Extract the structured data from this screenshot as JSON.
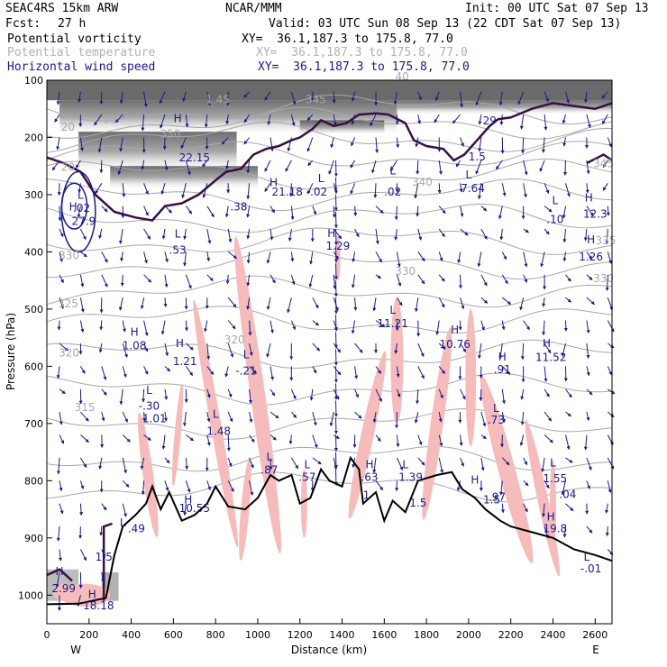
{
  "header": {
    "model": "SEAC4RS 15km ARW",
    "center": "NCAR/MMM",
    "init": "Init: 00 UTC Sat 07 Sep 13",
    "fcst_label": "Fcst:",
    "fcst_value": "27 h",
    "valid": "Valid: 03 UTC Sun 08 Sep 13 (22 CDT Sat 07 Sep 13)",
    "fields": [
      {
        "name": "Potential vorticity",
        "xy": "XY=  36.1,187.3 to 175.8, 77.0",
        "color": "#000000"
      },
      {
        "name": "Potential temperature",
        "xy": "XY=  36.1,187.3 to 175.8, 77.0",
        "color": "#b0b0b0"
      },
      {
        "name": "Horizontal wind speed",
        "xy": "XY=  36.1,187.3 to 175.8, 77.0",
        "color": "#1a1a8c"
      }
    ]
  },
  "chart_data": {
    "type": "cross-section",
    "ylabel": "Pressure (hPa)",
    "xlabel": "Distance (km)",
    "xlim": [
      0,
      2680
    ],
    "ylim": [
      1050,
      100
    ],
    "x_ticks": [
      0,
      200,
      400,
      600,
      800,
      1000,
      1200,
      1400,
      1600,
      1800,
      2000,
      2200,
      2400,
      2600
    ],
    "y_ticks": [
      100,
      200,
      300,
      400,
      500,
      600,
      700,
      800,
      900,
      1000
    ],
    "x_end_labels": {
      "left": "W",
      "right": "E"
    },
    "terrain": [
      [
        0,
        1016
      ],
      [
        150,
        1015
      ],
      [
        280,
        1005
      ],
      [
        320,
        930
      ],
      [
        360,
        880
      ],
      [
        420,
        860
      ],
      [
        470,
        840
      ],
      [
        500,
        810
      ],
      [
        540,
        850
      ],
      [
        580,
        820
      ],
      [
        640,
        870
      ],
      [
        700,
        860
      ],
      [
        760,
        840
      ],
      [
        800,
        810
      ],
      [
        860,
        845
      ],
      [
        940,
        850
      ],
      [
        1000,
        830
      ],
      [
        1060,
        790
      ],
      [
        1100,
        800
      ],
      [
        1160,
        790
      ],
      [
        1200,
        840
      ],
      [
        1250,
        830
      ],
      [
        1300,
        780
      ],
      [
        1340,
        800
      ],
      [
        1400,
        810
      ],
      [
        1440,
        760
      ],
      [
        1480,
        780
      ],
      [
        1500,
        840
      ],
      [
        1560,
        820
      ],
      [
        1600,
        870
      ],
      [
        1640,
        835
      ],
      [
        1700,
        855
      ],
      [
        1760,
        800
      ],
      [
        1850,
        790
      ],
      [
        1920,
        785
      ],
      [
        1970,
        815
      ],
      [
        2030,
        830
      ],
      [
        2080,
        850
      ],
      [
        2150,
        870
      ],
      [
        2200,
        880
      ],
      [
        2300,
        890
      ],
      [
        2400,
        900
      ],
      [
        2500,
        920
      ],
      [
        2600,
        930
      ],
      [
        2680,
        940
      ]
    ],
    "labels": [
      {
        "t": "20",
        "x": 100,
        "p": 188,
        "c": "gray"
      },
      {
        "t": "20",
        "x": 100,
        "p": 258,
        "c": "gray"
      },
      {
        "t": "35",
        "x": 300,
        "p": 175,
        "c": "gray"
      },
      {
        "t": "350",
        "x": 585,
        "p": 200,
        "c": "gray"
      },
      {
        "t": "340",
        "x": 1780,
        "p": 284,
        "c": "gray"
      },
      {
        "t": "345",
        "x": 2640,
        "p": 252,
        "c": "gray"
      },
      {
        "t": "335",
        "x": 2650,
        "p": 387,
        "c": "gray"
      },
      {
        "t": "330",
        "x": 2640,
        "p": 453,
        "c": "gray"
      },
      {
        "t": "330",
        "x": 105,
        "p": 413,
        "c": "gray"
      },
      {
        "t": "330",
        "x": 1700,
        "p": 440,
        "c": "gray"
      },
      {
        "t": "325",
        "x": 100,
        "p": 497,
        "c": "gray"
      },
      {
        "t": "320",
        "x": 890,
        "p": 560,
        "c": "gray"
      },
      {
        "t": "320",
        "x": 105,
        "p": 583,
        "c": "gray"
      },
      {
        "t": "315",
        "x": 180,
        "p": 678,
        "c": "gray"
      },
      {
        "t": "H",
        "x": 125,
        "p": 328,
        "c": "navy"
      },
      {
        "t": "27.9",
        "x": 175,
        "p": 353,
        "c": "navy"
      },
      {
        "t": "L",
        "x": 160,
        "p": 307,
        "c": "navy"
      },
      {
        "t": ".02",
        "x": 165,
        "p": 330,
        "c": "navy"
      },
      {
        "t": "L",
        "x": 620,
        "p": 375,
        "c": "navy"
      },
      {
        "t": ".53",
        "x": 620,
        "p": 403,
        "c": "navy"
      },
      {
        "t": "H",
        "x": 620,
        "p": 173,
        "c": "navy"
      },
      {
        "t": "22.15",
        "x": 700,
        "p": 242,
        "c": "navy"
      },
      {
        "t": ".38",
        "x": 910,
        "p": 328,
        "c": "navy"
      },
      {
        "t": "H",
        "x": 1075,
        "p": 285,
        "c": "navy"
      },
      {
        "t": "21.18",
        "x": 1140,
        "p": 302,
        "c": "navy"
      },
      {
        "t": "L",
        "x": 1300,
        "p": 278,
        "c": "navy"
      },
      {
        "t": "-.02",
        "x": 1280,
        "p": 302,
        "c": "navy"
      },
      {
        "t": "H",
        "x": 1350,
        "p": 374,
        "c": "navy"
      },
      {
        "t": "1.29",
        "x": 1380,
        "p": 396,
        "c": "navy"
      },
      {
        "t": "L",
        "x": 1640,
        "p": 265,
        "c": "navy"
      },
      {
        "t": ".02",
        "x": 1640,
        "p": 302,
        "c": "navy"
      },
      {
        "t": "L",
        "x": 1640,
        "p": 508,
        "c": "navy"
      },
      {
        "t": "11.21",
        "x": 1640,
        "p": 532,
        "c": "navy"
      },
      {
        "t": "H",
        "x": 1935,
        "p": 543,
        "c": "navy"
      },
      {
        "t": "10.76",
        "x": 1935,
        "p": 568,
        "c": "navy"
      },
      {
        "t": "H",
        "x": 2160,
        "p": 590,
        "c": "navy"
      },
      {
        "t": ".91",
        "x": 2160,
        "p": 612,
        "c": "navy"
      },
      {
        "t": "H",
        "x": 2370,
        "p": 566,
        "c": "navy"
      },
      {
        "t": "11.52",
        "x": 2390,
        "p": 591,
        "c": "navy"
      },
      {
        "t": "H",
        "x": 2570,
        "p": 312,
        "c": "navy"
      },
      {
        "t": "12.3",
        "x": 2600,
        "p": 340,
        "c": "navy"
      },
      {
        "t": "L",
        "x": 2410,
        "p": 317,
        "c": "navy"
      },
      {
        "t": ".10",
        "x": 2410,
        "p": 350,
        "c": "navy"
      },
      {
        "t": "H",
        "x": 2580,
        "p": 385,
        "c": "navy"
      },
      {
        "t": "1.26",
        "x": 2580,
        "p": 415,
        "c": "navy"
      },
      {
        "t": "29",
        "x": 2100,
        "p": 177,
        "c": "navy"
      },
      {
        "t": "1.5",
        "x": 2040,
        "p": 240,
        "c": "navy"
      },
      {
        "t": "L",
        "x": 2000,
        "p": 272,
        "c": "navy"
      },
      {
        "t": "7.64",
        "x": 2020,
        "p": 295,
        "c": "navy"
      },
      {
        "t": "H",
        "x": 415,
        "p": 547,
        "c": "navy"
      },
      {
        "t": "1.08",
        "x": 415,
        "p": 570,
        "c": "navy"
      },
      {
        "t": "H",
        "x": 630,
        "p": 566,
        "c": "navy"
      },
      {
        "t": "1.21",
        "x": 655,
        "p": 598,
        "c": "navy"
      },
      {
        "t": "L",
        "x": 945,
        "p": 586,
        "c": "navy"
      },
      {
        "t": "-.21",
        "x": 945,
        "p": 614,
        "c": "navy"
      },
      {
        "t": "L",
        "x": 485,
        "p": 648,
        "c": "navy"
      },
      {
        "t": "-.30",
        "x": 485,
        "p": 676,
        "c": "navy"
      },
      {
        "t": "1.01",
        "x": 510,
        "p": 698,
        "c": "navy"
      },
      {
        "t": "L",
        "x": 800,
        "p": 690,
        "c": "navy"
      },
      {
        "t": "1.48",
        "x": 815,
        "p": 720,
        "c": "navy"
      },
      {
        "t": "L",
        "x": 1055,
        "p": 765,
        "c": "navy"
      },
      {
        "t": ".87",
        "x": 1055,
        "p": 788,
        "c": "navy"
      },
      {
        "t": "L",
        "x": 1235,
        "p": 778,
        "c": "navy"
      },
      {
        "t": ".57",
        "x": 1235,
        "p": 800,
        "c": "navy"
      },
      {
        "t": "H",
        "x": 1530,
        "p": 778,
        "c": "navy"
      },
      {
        "t": ".63",
        "x": 1530,
        "p": 800,
        "c": "navy"
      },
      {
        "t": "L",
        "x": 1700,
        "p": 778,
        "c": "navy"
      },
      {
        "t": "1.39",
        "x": 1725,
        "p": 800,
        "c": "navy"
      },
      {
        "t": "1.5",
        "x": 1760,
        "p": 845,
        "c": "navy"
      },
      {
        "t": "1",
        "x": 1515,
        "p": 832,
        "c": "navy"
      },
      {
        "t": "H",
        "x": 2030,
        "p": 805,
        "c": "navy"
      },
      {
        "t": ".97",
        "x": 2135,
        "p": 835,
        "c": "navy"
      },
      {
        "t": "1.5",
        "x": 2110,
        "p": 840,
        "c": "navy"
      },
      {
        "t": "L",
        "x": 2130,
        "p": 680,
        "c": "navy"
      },
      {
        "t": ".73",
        "x": 2130,
        "p": 700,
        "c": "navy"
      },
      {
        "t": "L",
        "x": 2400,
        "p": 775,
        "c": "navy"
      },
      {
        "t": "1.55",
        "x": 2410,
        "p": 803,
        "c": "navy"
      },
      {
        "t": ".04",
        "x": 2470,
        "p": 830,
        "c": "navy"
      },
      {
        "t": "H",
        "x": 2390,
        "p": 870,
        "c": "navy"
      },
      {
        "t": "19.8",
        "x": 2410,
        "p": 890,
        "c": "navy"
      },
      {
        "t": "L",
        "x": 2560,
        "p": 940,
        "c": "navy"
      },
      {
        "t": "-.01",
        "x": 2580,
        "p": 960,
        "c": "navy"
      },
      {
        "t": "H",
        "x": 670,
        "p": 840,
        "c": "navy"
      },
      {
        "t": "10.55",
        "x": 700,
        "p": 855,
        "c": "navy"
      },
      {
        "t": "L",
        "x": 360,
        "p": 880,
        "c": "navy"
      },
      {
        "t": ".49",
        "x": 425,
        "p": 890,
        "c": "navy"
      },
      {
        "t": "1.5",
        "x": 270,
        "p": 940,
        "c": "navy"
      },
      {
        "t": "H",
        "x": 60,
        "p": 965,
        "c": "navy"
      },
      {
        "t": "2.99",
        "x": 80,
        "p": 995,
        "c": "navy"
      },
      {
        "t": "H",
        "x": 215,
        "p": 1005,
        "c": "navy"
      },
      {
        "t": "18.18",
        "x": 245,
        "p": 1025,
        "c": "navy"
      },
      {
        "t": "1.45",
        "x": 810,
        "p": 140,
        "c": "gray"
      },
      {
        "t": "345",
        "x": 1275,
        "p": 140,
        "c": "gray"
      },
      {
        "t": "40",
        "x": 1685,
        "p": 100,
        "c": "gray"
      }
    ]
  }
}
